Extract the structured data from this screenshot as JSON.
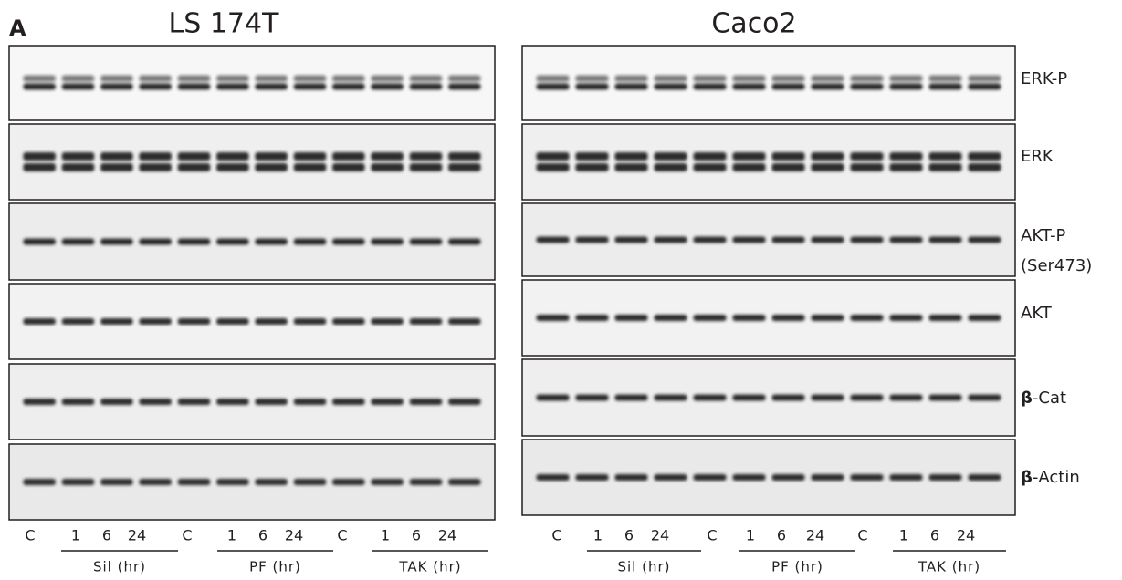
{
  "figure_label": "A",
  "panels": [
    {
      "title": "LS 174T",
      "lanes": [
        "C",
        "1",
        "6",
        "24",
        "C",
        "1",
        "6",
        "24",
        "C",
        "1",
        "6",
        "24"
      ],
      "groups": [
        "Sil (hr)",
        "PF (hr)",
        "TAK (hr)"
      ]
    },
    {
      "title": "Caco2",
      "lanes": [
        "C",
        "1",
        "6",
        "24",
        "C",
        "1",
        "6",
        "24",
        "C",
        "1",
        "6",
        "24"
      ],
      "groups": [
        "Sil (hr)",
        "PF (hr)",
        "TAK (hr)"
      ]
    }
  ],
  "rows": [
    {
      "label": "ERK-P"
    },
    {
      "label": "ERK"
    },
    {
      "label": "AKT-P",
      "sublabel": "(Ser473)"
    },
    {
      "label": "AKT"
    },
    {
      "symbol": "β",
      "label": "-Cat"
    },
    {
      "symbol": "β",
      "label": "-Actin"
    }
  ]
}
